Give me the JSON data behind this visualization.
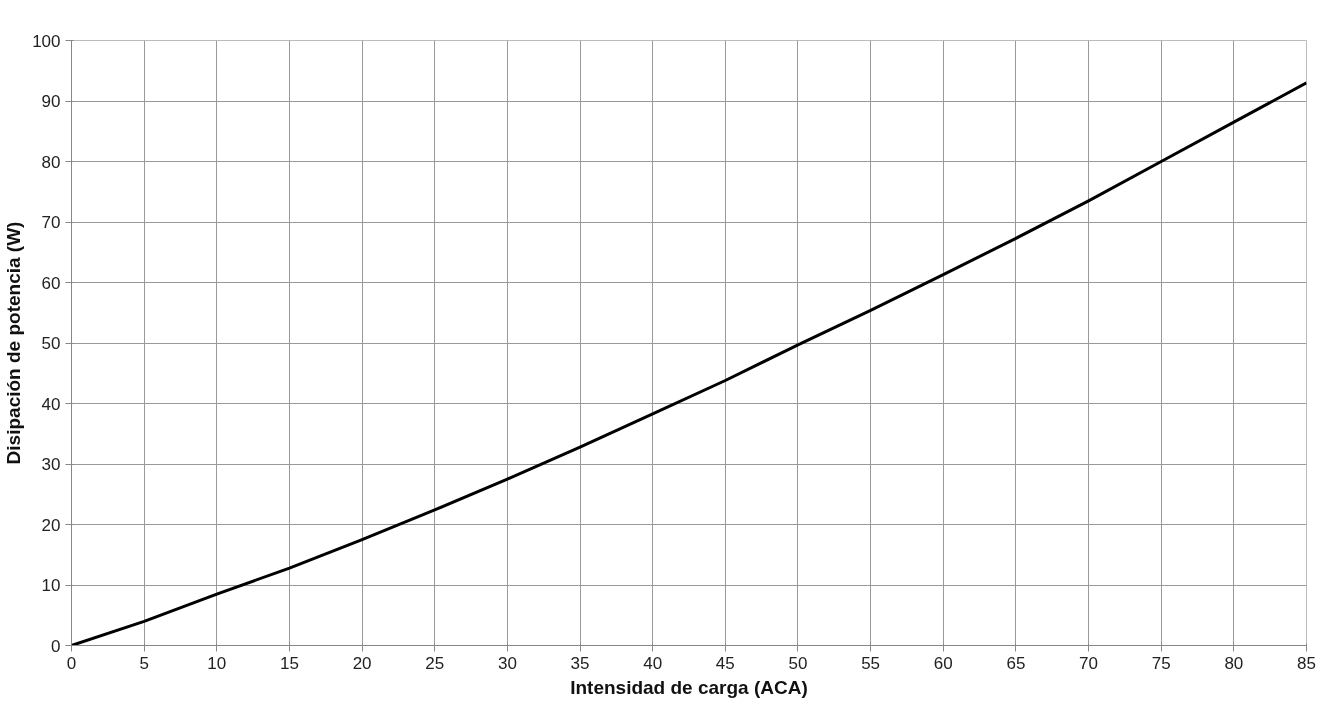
{
  "chart_data": {
    "type": "line",
    "xlabel": "Intensidad de carga (ACA)",
    "ylabel": "Disipación de potencia (W)",
    "x": [
      0,
      5,
      10,
      15,
      20,
      25,
      30,
      35,
      40,
      45,
      50,
      55,
      60,
      65,
      70,
      75,
      80,
      85
    ],
    "series": [
      {
        "color": "#000000",
        "values": [
          0,
          4,
          8.5,
          12.8,
          17.5,
          22.4,
          27.5,
          32.8,
          38.3,
          43.8,
          49.7,
          55.4,
          61.3,
          67.3,
          73.5,
          80,
          86.5,
          93
        ]
      }
    ],
    "xlim": [
      0,
      85
    ],
    "ylim": [
      0,
      100
    ],
    "xticks": [
      0,
      5,
      10,
      15,
      20,
      25,
      30,
      35,
      40,
      45,
      50,
      55,
      60,
      65,
      70,
      75,
      80,
      85
    ],
    "yticks": [
      0,
      10,
      20,
      30,
      40,
      50,
      60,
      70,
      80,
      90,
      100
    ],
    "grid": true,
    "marker": "none",
    "line_style": "solid"
  }
}
